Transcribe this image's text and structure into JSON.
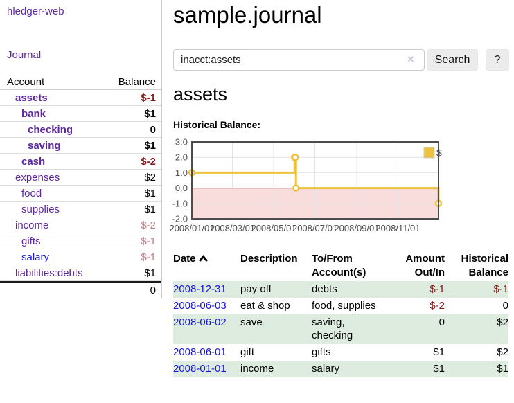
{
  "app": {
    "brand": "hledger-web",
    "nav_journal": "Journal"
  },
  "sidebar": {
    "header": {
      "account": "Account",
      "balance": "Balance"
    },
    "accounts": [
      {
        "name": "assets",
        "indent": 1,
        "balance": "$-1",
        "bold": true,
        "balance_tone": "neg-strong",
        "link_tone": "purple"
      },
      {
        "name": "bank",
        "indent": 2,
        "balance": "$1",
        "bold": true,
        "balance_tone": "plain",
        "link_tone": "purple"
      },
      {
        "name": "checking",
        "indent": 3,
        "balance": "0",
        "bold": true,
        "balance_tone": "plain",
        "link_tone": "purple"
      },
      {
        "name": "saving",
        "indent": 3,
        "balance": "$1",
        "bold": true,
        "balance_tone": "plain",
        "link_tone": "purple"
      },
      {
        "name": "cash",
        "indent": 2,
        "balance": "$-2",
        "bold": true,
        "balance_tone": "neg-strong",
        "link_tone": "purple"
      },
      {
        "name": "expenses",
        "indent": 1,
        "balance": "$2",
        "bold": false,
        "balance_tone": "plain",
        "link_tone": "purple"
      },
      {
        "name": "food",
        "indent": 2,
        "balance": "$1",
        "bold": false,
        "balance_tone": "plain",
        "link_tone": "purple"
      },
      {
        "name": "supplies",
        "indent": 2,
        "balance": "$1",
        "bold": false,
        "balance_tone": "plain",
        "link_tone": "purple"
      },
      {
        "name": "income",
        "indent": 1,
        "balance": "$-2",
        "bold": false,
        "balance_tone": "neg-soft",
        "link_tone": "purple"
      },
      {
        "name": "gifts",
        "indent": 2,
        "balance": "$-1",
        "bold": false,
        "balance_tone": "neg-soft",
        "link_tone": "purple"
      },
      {
        "name": "salary",
        "indent": 2,
        "balance": "$-1",
        "bold": false,
        "balance_tone": "neg-soft",
        "link_tone": "blue"
      },
      {
        "name": "liabilities:debts",
        "indent": 1,
        "balance": "$1",
        "bold": false,
        "balance_tone": "plain",
        "link_tone": "purple"
      }
    ],
    "total": "0"
  },
  "header": {
    "title": "sample.journal"
  },
  "search": {
    "value": "inacct:assets",
    "clear_icon": "×",
    "button_label": "Search",
    "help_label": "?"
  },
  "account_page": {
    "title": "assets",
    "chart_label": "Historical Balance:"
  },
  "chart_data": {
    "type": "line",
    "step": true,
    "title": "Historical Balance",
    "legend": [
      {
        "label": "$",
        "color": "#EDC240"
      }
    ],
    "legend_position": "top-right",
    "grid": true,
    "points": [
      {
        "date": "2008-01-01",
        "day": 0,
        "value": 1
      },
      {
        "date": "2008-06-01",
        "day": 152,
        "value": 2
      },
      {
        "date": "2008-06-02",
        "day": 153,
        "value": 2
      },
      {
        "date": "2008-06-03",
        "day": 154,
        "value": 0
      },
      {
        "date": "2008-12-31",
        "day": 365,
        "value": -1
      }
    ],
    "x_ticks": [
      {
        "day": 0,
        "label": "2008/01/01"
      },
      {
        "day": 60,
        "label": "2008/03/01"
      },
      {
        "day": 121,
        "label": "2008/05/01"
      },
      {
        "day": 182,
        "label": "2008/07/01"
      },
      {
        "day": 244,
        "label": "2008/09/01"
      },
      {
        "day": 305,
        "label": "2008/11/01"
      }
    ],
    "y_ticks": [
      "3.0",
      "2.0",
      "1.0",
      "0.0",
      "-1.0",
      "-2.0"
    ],
    "ylim": [
      -2,
      3
    ],
    "xlim": [
      0,
      365
    ],
    "colors": {
      "line": "#EDC240",
      "point_fill": "#ffffff",
      "negative_region": "#f9dcdc",
      "zero_line": "#8b0000",
      "plot_border": "#4c4c4c",
      "grid": "#e4e4e4",
      "axis_text": "#4d4d4d",
      "legend_box_border": "#cccccc"
    }
  },
  "register": {
    "header": {
      "date": "Date",
      "description": "Description",
      "accounts_line1": "To/From",
      "accounts_line2": "Account(s)",
      "amount_line1": "Amount",
      "amount_line2": "Out/In",
      "balance_line1": "Historical",
      "balance_line2": "Balance"
    },
    "rows": [
      {
        "date": "2008-12-31",
        "description": "pay off",
        "accounts": "debts",
        "amount": "$-1",
        "amount_neg": true,
        "balance": "$-1",
        "balance_neg": true,
        "green": true
      },
      {
        "date": "2008-06-03",
        "description": "eat & shop",
        "accounts": "food, supplies",
        "amount": "$-2",
        "amount_neg": true,
        "balance": "0",
        "balance_neg": false,
        "green": false
      },
      {
        "date": "2008-06-02",
        "description": "save",
        "accounts": "saving,\nchecking",
        "amount": "0",
        "amount_neg": false,
        "balance": "$2",
        "balance_neg": false,
        "green": true
      },
      {
        "date": "2008-06-01",
        "description": "gift",
        "accounts": "gifts",
        "amount": "$1",
        "amount_neg": false,
        "balance": "$2",
        "balance_neg": false,
        "green": false
      },
      {
        "date": "2008-01-01",
        "description": "income",
        "accounts": "salary",
        "amount": "$1",
        "amount_neg": false,
        "balance": "$1",
        "balance_neg": false,
        "green": true
      }
    ]
  }
}
